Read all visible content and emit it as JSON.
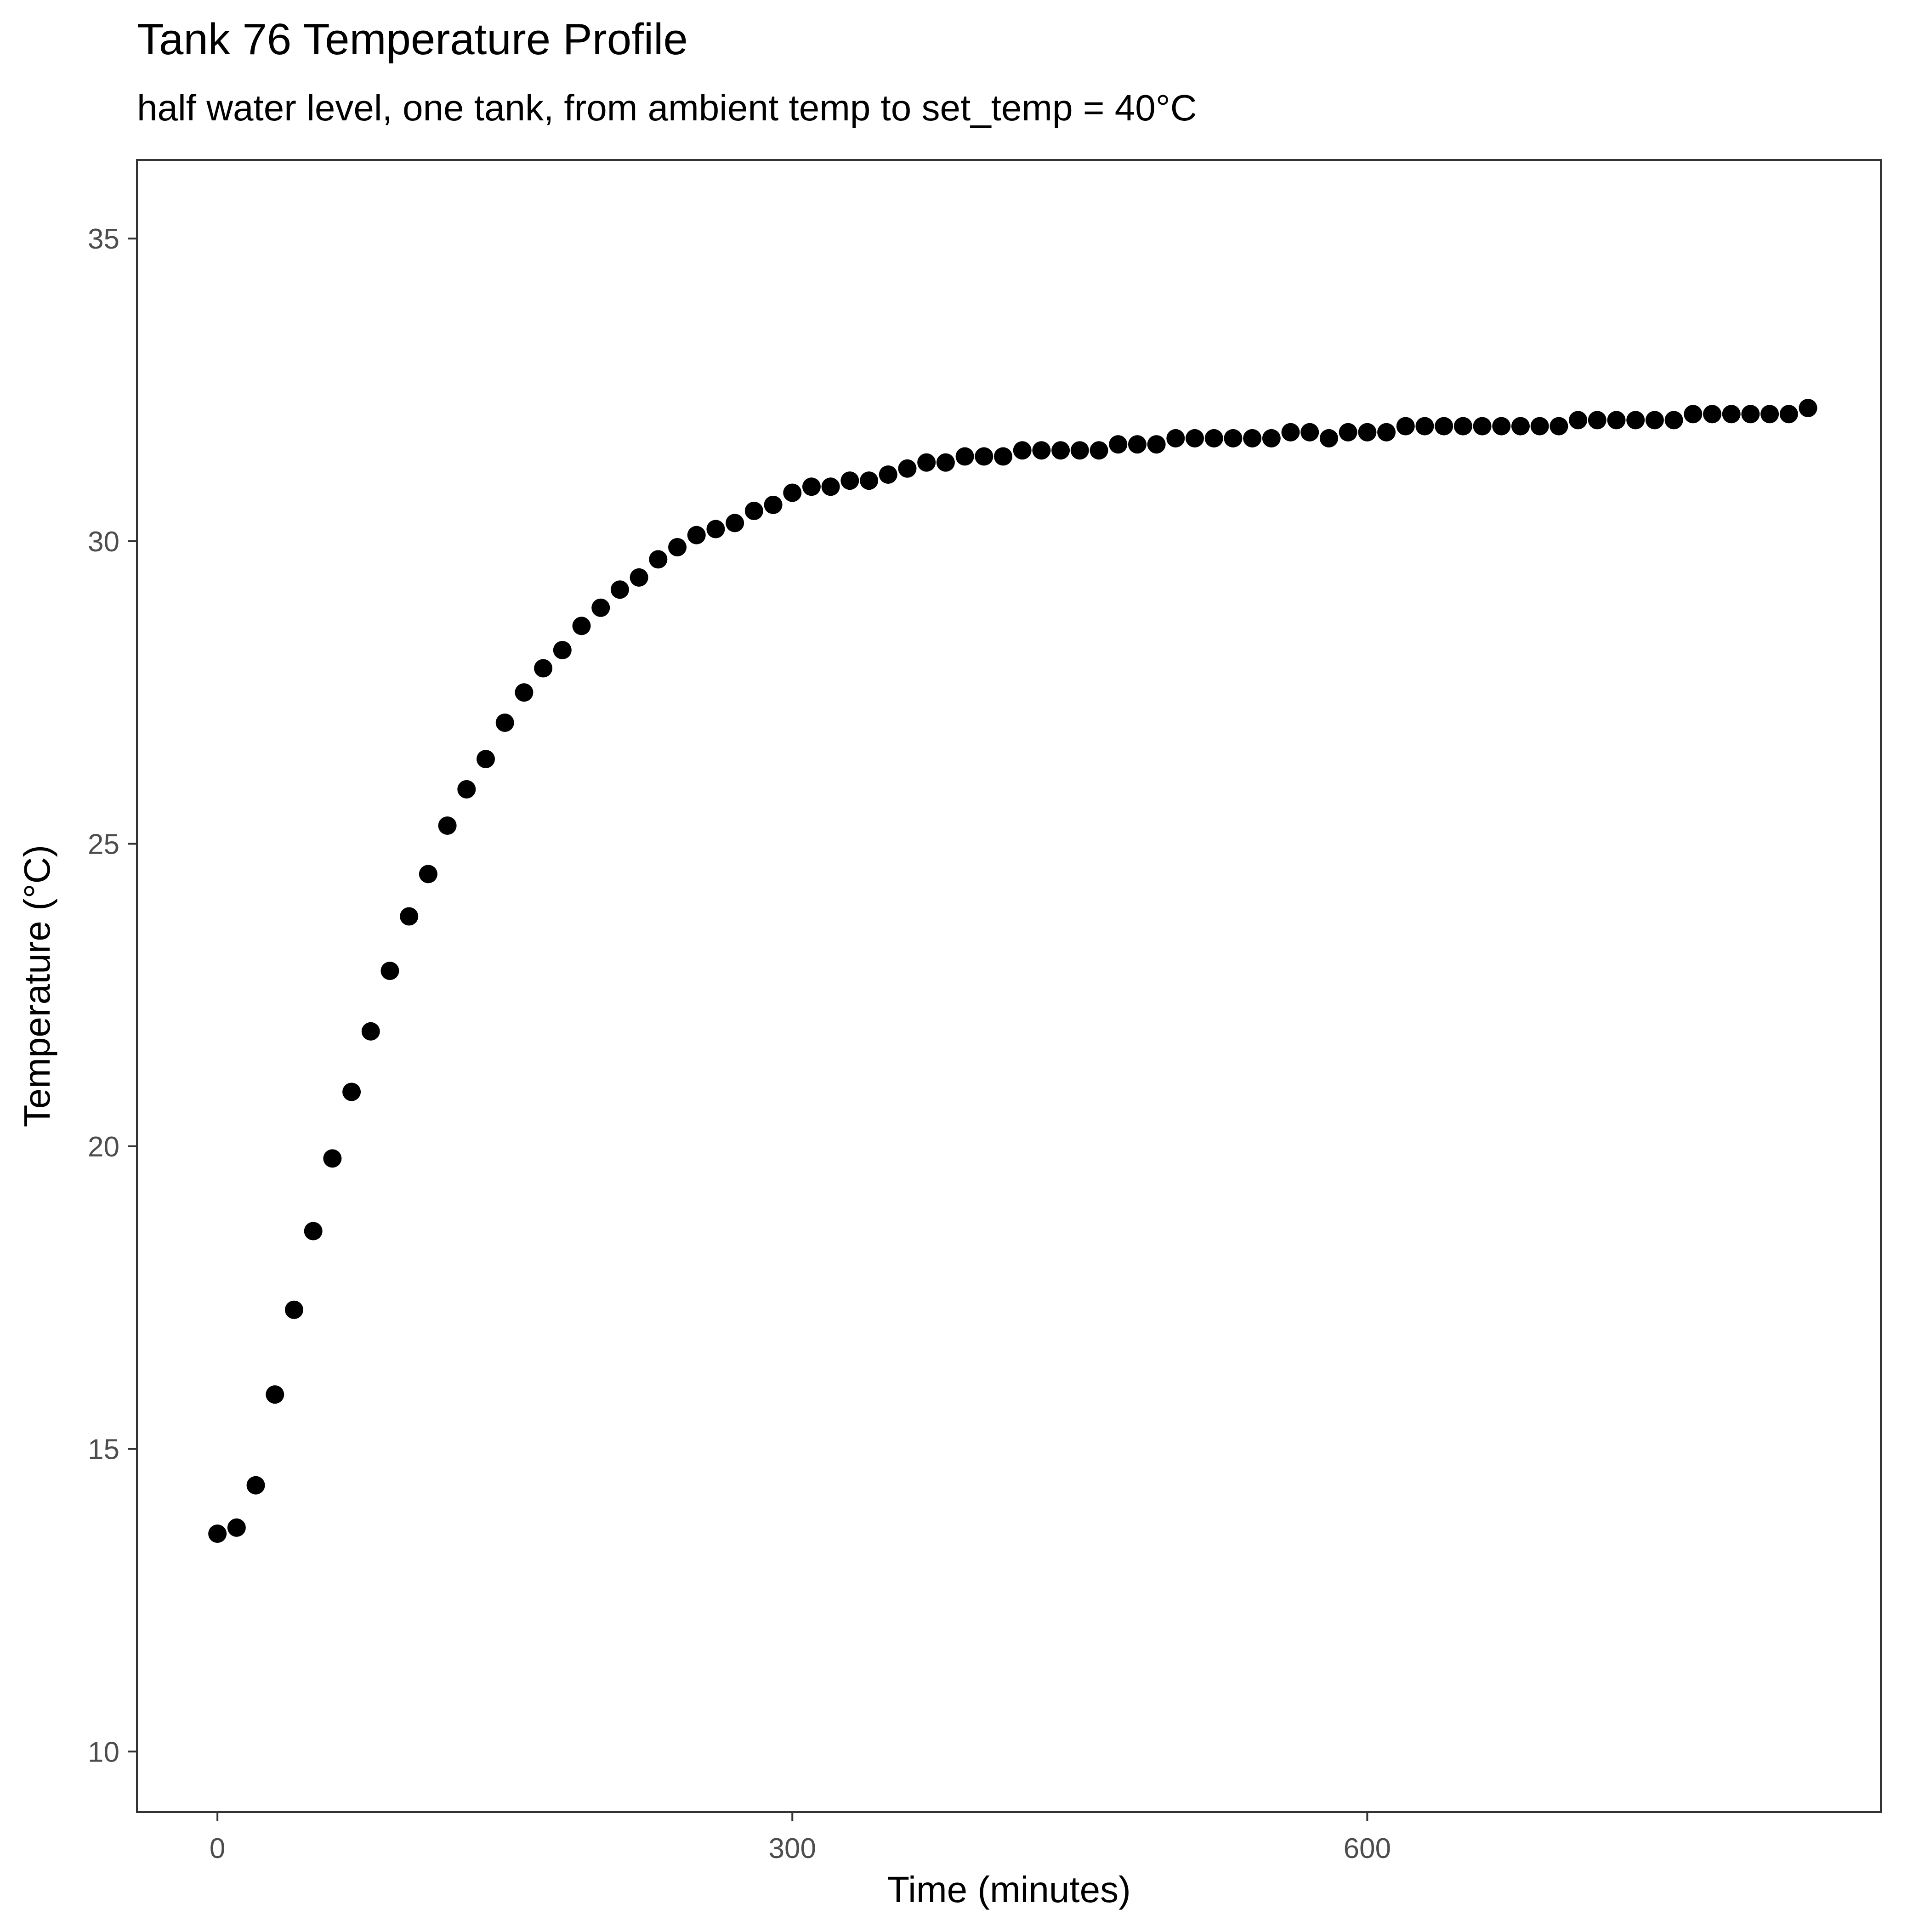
{
  "chart_data": {
    "type": "scatter",
    "title": "Tank 76 Temperature Profile",
    "subtitle": "half water level, one tank, from ambient temp to set_temp = 40°C",
    "xlabel": "Time (minutes)",
    "ylabel": "Temperature (°C)",
    "xlim": [
      -42,
      868
    ],
    "ylim": [
      9.0,
      36.3
    ],
    "x_ticks": [
      0,
      300,
      600
    ],
    "x_tick_labels": [
      "0",
      "300",
      "600"
    ],
    "y_ticks": [
      10,
      15,
      20,
      25,
      30,
      35
    ],
    "y_tick_labels": [
      "10",
      "15",
      "20",
      "25",
      "30",
      "35"
    ],
    "grid": false,
    "legend": "none",
    "point_color": "#000000",
    "series": [
      {
        "x": [
          0,
          10,
          20,
          30,
          40,
          50,
          60,
          70,
          80,
          90,
          100,
          110,
          120,
          130,
          140,
          150,
          160,
          170,
          180,
          190,
          200,
          210,
          220,
          230,
          240,
          250,
          260,
          270,
          280,
          290,
          300,
          310,
          320,
          330,
          340,
          350,
          360,
          370,
          380,
          390,
          400,
          410,
          420,
          430,
          440,
          450,
          460,
          470,
          480,
          490,
          500,
          510,
          520,
          530,
          540,
          550,
          560,
          570,
          580,
          590,
          600,
          610,
          620,
          630,
          640,
          650,
          660,
          670,
          680,
          690,
          700,
          710,
          720,
          730,
          740,
          750,
          760,
          770,
          780,
          790,
          800,
          810,
          820,
          830
        ],
        "y": [
          13.6,
          13.7,
          14.4,
          15.9,
          17.3,
          18.6,
          19.8,
          20.9,
          21.9,
          22.9,
          23.8,
          24.5,
          25.3,
          25.9,
          26.4,
          27.0,
          27.5,
          27.9,
          28.2,
          28.6,
          28.9,
          29.2,
          29.4,
          29.7,
          29.9,
          30.1,
          30.2,
          30.3,
          30.5,
          30.6,
          30.8,
          30.9,
          30.9,
          31.0,
          31.0,
          31.1,
          31.2,
          31.3,
          31.3,
          31.4,
          31.4,
          31.4,
          31.5,
          31.5,
          31.5,
          31.5,
          31.5,
          31.6,
          31.6,
          31.6,
          31.7,
          31.7,
          31.7,
          31.7,
          31.7,
          31.7,
          31.8,
          31.8,
          31.7,
          31.8,
          31.8,
          31.8,
          31.9,
          31.9,
          31.9,
          31.9,
          31.9,
          31.9,
          31.9,
          31.9,
          31.9,
          32.0,
          32.0,
          32.0,
          32.0,
          32.0,
          32.0,
          32.1,
          32.1,
          32.1,
          32.1,
          32.1,
          32.1,
          32.2
        ]
      }
    ]
  }
}
